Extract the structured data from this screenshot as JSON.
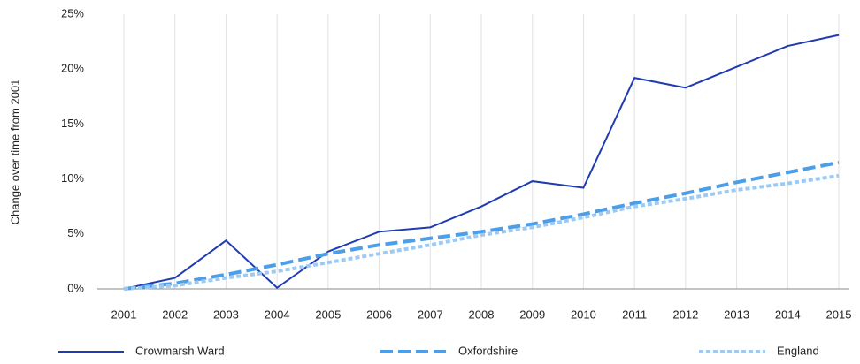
{
  "chart_data": {
    "type": "line",
    "y_label": "Change over  time from 2001",
    "categories": [
      "2001",
      "2002",
      "2003",
      "2004",
      "2005",
      "2006",
      "2007",
      "2008",
      "2009",
      "2010",
      "2011",
      "2012",
      "2013",
      "2014",
      "2015"
    ],
    "series": [
      {
        "name": "Crowmarsh Ward",
        "color": "#1f3bb3",
        "style": "solid",
        "values": [
          0,
          1.0,
          4.4,
          0.1,
          3.4,
          5.2,
          5.6,
          7.5,
          9.8,
          9.2,
          19.2,
          18.3,
          20.2,
          22.1,
          23.1
        ]
      },
      {
        "name": "Oxfordshire",
        "color": "#4d9ee8",
        "style": "dashed",
        "values": [
          0,
          0.5,
          1.3,
          2.2,
          3.2,
          4.0,
          4.6,
          5.2,
          5.9,
          6.8,
          7.8,
          8.7,
          9.7,
          10.6,
          11.5
        ]
      },
      {
        "name": "England",
        "color": "#9ccaf5",
        "style": "dotted",
        "values": [
          0,
          0.3,
          1.0,
          1.6,
          2.4,
          3.2,
          4.0,
          4.9,
          5.6,
          6.5,
          7.5,
          8.2,
          9.0,
          9.6,
          10.3
        ]
      }
    ],
    "ylim": [
      0,
      25
    ],
    "yticks": [
      {
        "value": 0,
        "label": "0%"
      },
      {
        "value": 5,
        "label": "5%"
      },
      {
        "value": 10,
        "label": "10%"
      },
      {
        "value": 15,
        "label": "15%"
      },
      {
        "value": 20,
        "label": "20%"
      },
      {
        "value": 25,
        "label": "25%"
      }
    ],
    "grid": "x",
    "legend": "bottom"
  }
}
